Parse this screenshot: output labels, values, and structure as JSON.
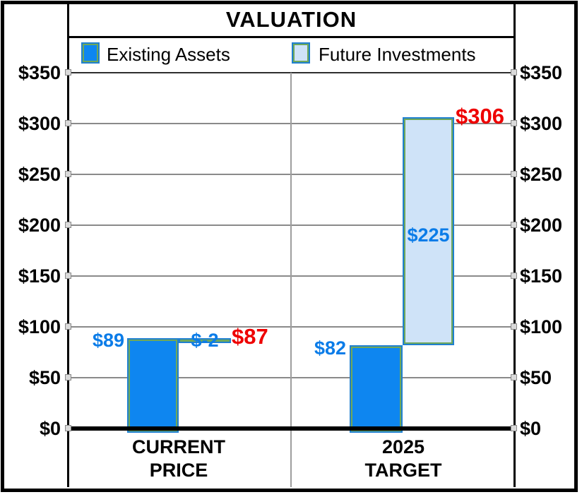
{
  "chart_data": {
    "type": "bar",
    "variant": "stacked-waterfall",
    "title": "VALUATION",
    "legend": [
      {
        "label": "Existing Assets",
        "color": "#0e86f0"
      },
      {
        "label": "Future Investments",
        "color": "#cfe3f8"
      }
    ],
    "categories": [
      [
        "CURRENT",
        "PRICE"
      ],
      [
        "2025",
        "TARGET"
      ]
    ],
    "series": [
      {
        "name": "Existing Assets",
        "values": [
          89,
          82
        ]
      },
      {
        "name": "Future Investments",
        "values": [
          -2,
          225
        ]
      }
    ],
    "totals": [
      87,
      306
    ],
    "value_labels": {
      "current_existing": "$89",
      "current_future": "$-2",
      "current_total": "$87",
      "target_existing": "$82",
      "target_future": "$225",
      "target_total": "$306"
    },
    "y_axis": {
      "min": 0,
      "max": 350,
      "step": 50,
      "tick_labels": [
        "$0",
        "$50",
        "$100",
        "$150",
        "$200",
        "$250",
        "$300",
        "$350"
      ],
      "sides": "both",
      "grid": true
    },
    "colors": {
      "existing": "#0e86f0",
      "future": "#cfe3f8",
      "label_blue": "#0b7ce8",
      "label_red": "#ee0000"
    }
  }
}
